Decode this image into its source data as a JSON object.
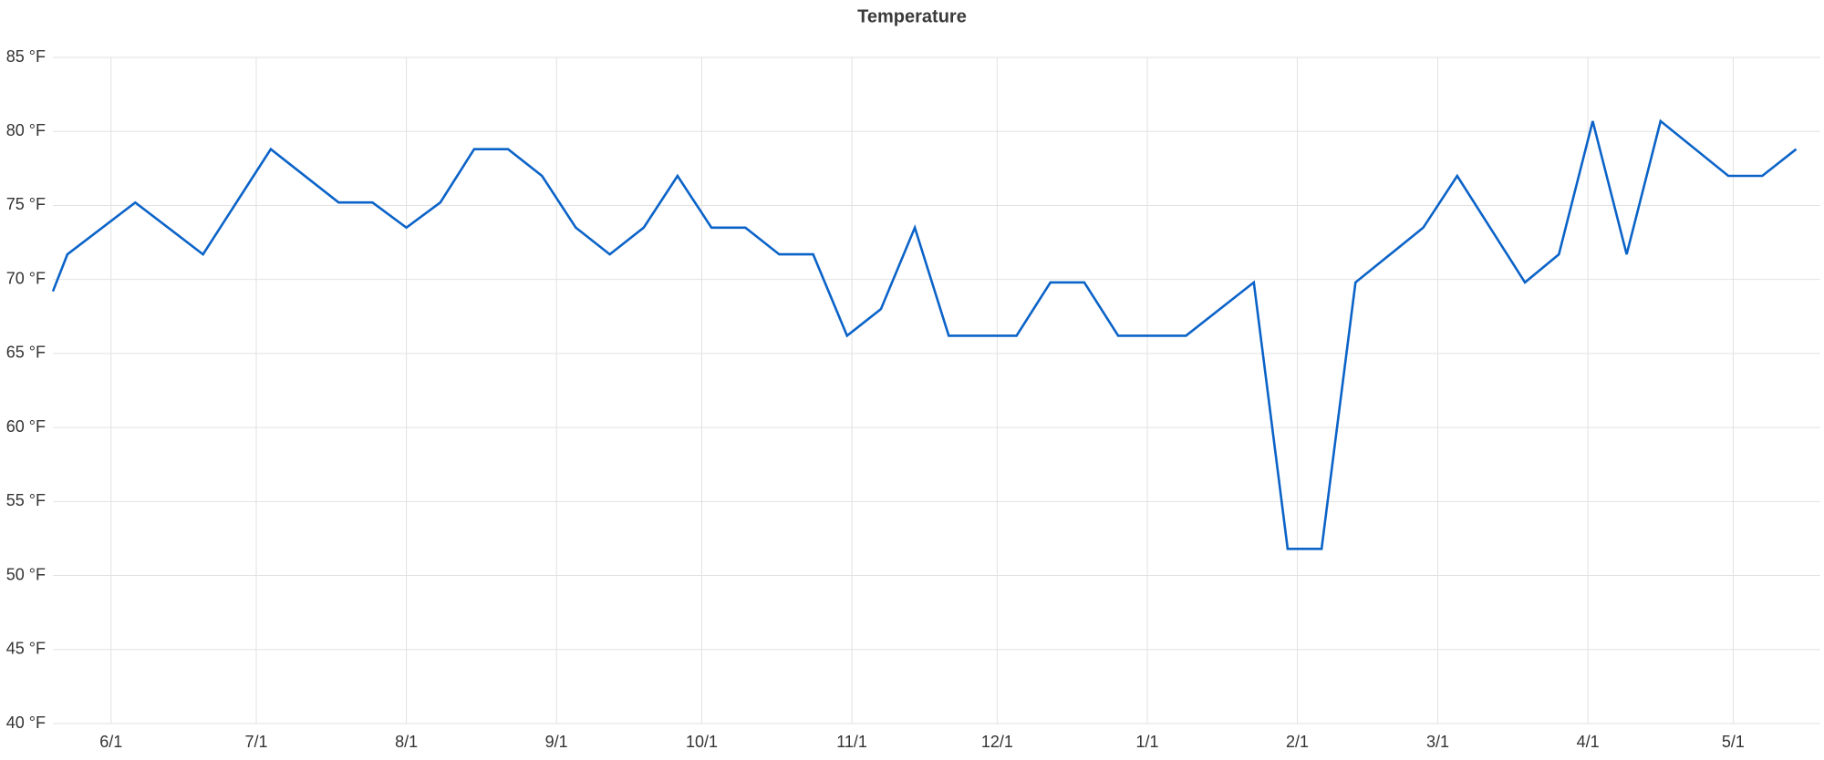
{
  "chart_data": {
    "type": "line",
    "title": "Temperature",
    "x": [
      "5/20",
      "5/23",
      "6/6",
      "6/20",
      "7/4",
      "7/18",
      "7/25",
      "8/1",
      "8/8",
      "8/15",
      "8/22",
      "8/29",
      "9/5",
      "9/12",
      "9/19",
      "9/26",
      "10/3",
      "10/10",
      "10/17",
      "10/24",
      "10/31",
      "11/7",
      "11/14",
      "11/21",
      "11/28",
      "12/5",
      "12/12",
      "12/19",
      "12/26",
      "1/2",
      "1/9",
      "1/23",
      "1/30",
      "2/6",
      "2/13",
      "2/27",
      "3/5",
      "3/19",
      "3/26",
      "4/2",
      "4/9",
      "4/16",
      "4/30",
      "5/7",
      "5/14"
    ],
    "series": [
      {
        "name": "Temperature",
        "color": "#0b63c8",
        "values": [
          69.2,
          71.7,
          75.2,
          71.7,
          78.8,
          75.2,
          75.2,
          73.5,
          75.2,
          78.8,
          78.8,
          77.0,
          73.5,
          71.7,
          73.5,
          77.0,
          73.5,
          73.5,
          71.7,
          71.7,
          66.2,
          68.0,
          73.5,
          66.2,
          66.2,
          66.2,
          69.8,
          69.8,
          66.2,
          66.2,
          66.2,
          69.8,
          51.8,
          51.8,
          69.8,
          73.5,
          77.0,
          69.8,
          71.7,
          80.7,
          71.7,
          80.7,
          77.0,
          77.0,
          78.8
        ]
      }
    ],
    "xlim": [
      "5/20",
      "5/19"
    ],
    "xticks": [
      "6/1",
      "7/1",
      "8/1",
      "9/1",
      "10/1",
      "11/1",
      "12/1",
      "1/1",
      "2/1",
      "3/1",
      "4/1",
      "5/1"
    ],
    "ylim": [
      40,
      85
    ],
    "yticks": [
      {
        "value": 40,
        "label": "40 °F"
      },
      {
        "value": 45,
        "label": "45 °F"
      },
      {
        "value": 50,
        "label": "50 °F"
      },
      {
        "value": 55,
        "label": "55 °F"
      },
      {
        "value": 60,
        "label": "60 °F"
      },
      {
        "value": 65,
        "label": "65 °F"
      },
      {
        "value": 70,
        "label": "70 °F"
      },
      {
        "value": 75,
        "label": "75 °F"
      },
      {
        "value": 80,
        "label": "80 °F"
      },
      {
        "value": 85,
        "label": "85 °F"
      }
    ],
    "grid": true
  }
}
